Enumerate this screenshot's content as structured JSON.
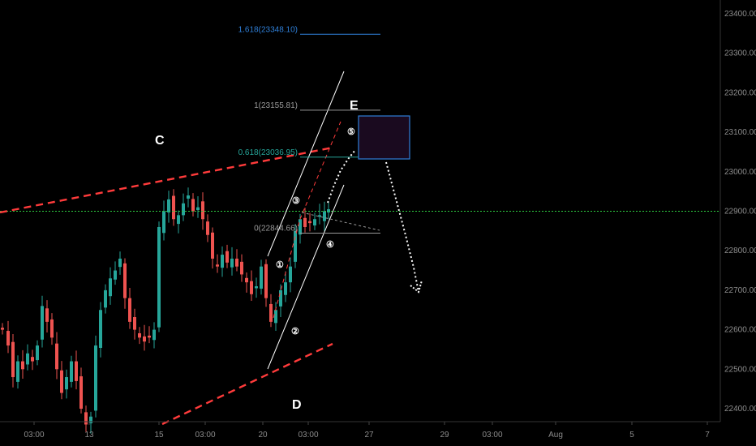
{
  "chart_data": {
    "type": "candlestick",
    "x_ticks": [
      "03:00",
      "13",
      "15",
      "03:00",
      "20",
      "03:00",
      "27",
      "29",
      "03:00",
      "Aug",
      "5",
      "7"
    ],
    "y_ticks": [
      "22400.00",
      "22500.00",
      "22600.00",
      "22700.00",
      "22800.00",
      "22900.00",
      "23000.00",
      "23100.00",
      "23200.00",
      "23300.00",
      "23400.00"
    ],
    "ylim": [
      22365,
      23455
    ],
    "horizontal_line": 22900,
    "fib_levels": [
      {
        "text": "1.618(23348.10)",
        "value": 23348.1,
        "color": "#2f7fd8"
      },
      {
        "text": "1(23155.81)",
        "value": 23155.81,
        "color": "#9a9a9a"
      },
      {
        "text": "0.618(23036.95)",
        "value": 23036.95,
        "color": "#26a69a"
      },
      {
        "text": "0(22844.66)",
        "value": 22844.66,
        "color": "#9a9a9a"
      }
    ],
    "wave_labels": [
      "①",
      "②",
      "③",
      "④",
      "⑤"
    ],
    "structure_labels": [
      "C",
      "D",
      "E"
    ],
    "colors": {
      "up": "#26a69a",
      "down": "#ef5350",
      "grid_line": "#2ecc40",
      "channel": "#ff3b3b",
      "box": "#2f7fd8"
    }
  }
}
